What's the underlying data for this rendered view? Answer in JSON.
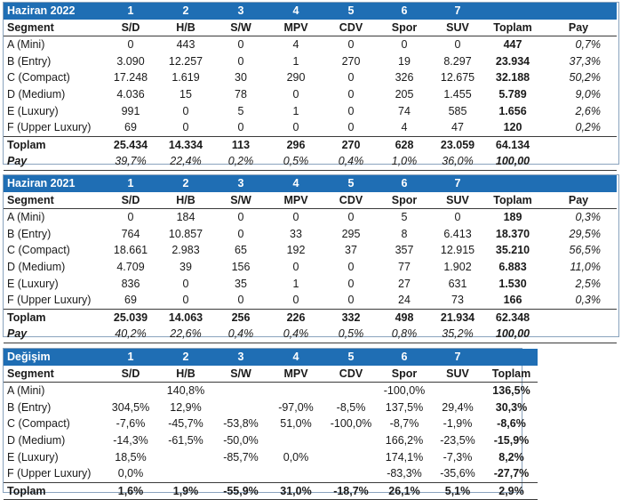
{
  "tables": [
    {
      "title": "Haziran 2022",
      "col_numbers": [
        "1",
        "2",
        "3",
        "4",
        "5",
        "6",
        "7",
        "",
        ""
      ],
      "headers": [
        "Segment",
        "S/D",
        "H/B",
        "S/W",
        "MPV",
        "CDV",
        "Spor",
        "SUV",
        "Toplam",
        "Pay"
      ],
      "rows": [
        [
          "A (Mini)",
          "0",
          "443",
          "0",
          "4",
          "0",
          "0",
          "0",
          "447",
          "0,7%"
        ],
        [
          "B (Entry)",
          "3.090",
          "12.257",
          "0",
          "1",
          "270",
          "19",
          "8.297",
          "23.934",
          "37,3%"
        ],
        [
          "C (Compact)",
          "17.248",
          "1.619",
          "30",
          "290",
          "0",
          "326",
          "12.675",
          "32.188",
          "50,2%"
        ],
        [
          "D (Medium)",
          "4.036",
          "15",
          "78",
          "0",
          "0",
          "205",
          "1.455",
          "5.789",
          "9,0%"
        ],
        [
          "E (Luxury)",
          "991",
          "0",
          "5",
          "1",
          "0",
          "74",
          "585",
          "1.656",
          "2,6%"
        ],
        [
          "F (Upper Luxury)",
          "69",
          "0",
          "0",
          "0",
          "0",
          "4",
          "47",
          "120",
          "0,2%"
        ]
      ],
      "total": [
        "Toplam",
        "25.434",
        "14.334",
        "113",
        "296",
        "270",
        "628",
        "23.059",
        "64.134",
        ""
      ],
      "pay": [
        "Pay",
        "39,7%",
        "22,4%",
        "0,2%",
        "0,5%",
        "0,4%",
        "1,0%",
        "36,0%",
        "100,00",
        ""
      ]
    },
    {
      "title": "Haziran 2021",
      "col_numbers": [
        "1",
        "2",
        "3",
        "4",
        "5",
        "6",
        "7",
        "",
        ""
      ],
      "headers": [
        "Segment",
        "S/D",
        "H/B",
        "S/W",
        "MPV",
        "CDV",
        "Spor",
        "SUV",
        "Toplam",
        "Pay"
      ],
      "rows": [
        [
          "A (Mini)",
          "0",
          "184",
          "0",
          "0",
          "0",
          "5",
          "0",
          "189",
          "0,3%"
        ],
        [
          "B (Entry)",
          "764",
          "10.857",
          "0",
          "33",
          "295",
          "8",
          "6.413",
          "18.370",
          "29,5%"
        ],
        [
          "C (Compact)",
          "18.661",
          "2.983",
          "65",
          "192",
          "37",
          "357",
          "12.915",
          "35.210",
          "56,5%"
        ],
        [
          "D (Medium)",
          "4.709",
          "39",
          "156",
          "0",
          "0",
          "77",
          "1.902",
          "6.883",
          "11,0%"
        ],
        [
          "E (Luxury)",
          "836",
          "0",
          "35",
          "1",
          "0",
          "27",
          "631",
          "1.530",
          "2,5%"
        ],
        [
          "F (Upper Luxury)",
          "69",
          "0",
          "0",
          "0",
          "0",
          "24",
          "73",
          "166",
          "0,3%"
        ]
      ],
      "total": [
        "Toplam",
        "25.039",
        "14.063",
        "256",
        "226",
        "332",
        "498",
        "21.934",
        "62.348",
        ""
      ],
      "pay": [
        "Pay",
        "40,2%",
        "22,6%",
        "0,4%",
        "0,4%",
        "0,5%",
        "0,8%",
        "35,2%",
        "100,00",
        ""
      ]
    },
    {
      "title": "Değişim",
      "col_numbers": [
        "1",
        "2",
        "3",
        "4",
        "5",
        "6",
        "7",
        ""
      ],
      "headers": [
        "Segment",
        "S/D",
        "H/B",
        "S/W",
        "MPV",
        "CDV",
        "Spor",
        "SUV",
        "Toplam"
      ],
      "rows": [
        [
          "A (Mini)",
          "",
          "140,8%",
          "",
          "",
          "",
          "-100,0%",
          "",
          "136,5%"
        ],
        [
          "B (Entry)",
          "304,5%",
          "12,9%",
          "",
          "-97,0%",
          "-8,5%",
          "137,5%",
          "29,4%",
          "30,3%"
        ],
        [
          "C (Compact)",
          "-7,6%",
          "-45,7%",
          "-53,8%",
          "51,0%",
          "-100,0%",
          "-8,7%",
          "-1,9%",
          "-8,6%"
        ],
        [
          "D (Medium)",
          "-14,3%",
          "-61,5%",
          "-50,0%",
          "",
          "",
          "166,2%",
          "-23,5%",
          "-15,9%"
        ],
        [
          "E (Luxury)",
          "18,5%",
          "",
          "-85,7%",
          "0,0%",
          "",
          "174,1%",
          "-7,3%",
          "8,2%"
        ],
        [
          "F (Upper Luxury)",
          "0,0%",
          "",
          "",
          "",
          "",
          "-83,3%",
          "-35,6%",
          "-27,7%"
        ]
      ],
      "total": [
        "Toplam",
        "1,6%",
        "1,9%",
        "-55,9%",
        "31,0%",
        "-18,7%",
        "26,1%",
        "5,1%",
        "2,9%"
      ]
    }
  ]
}
